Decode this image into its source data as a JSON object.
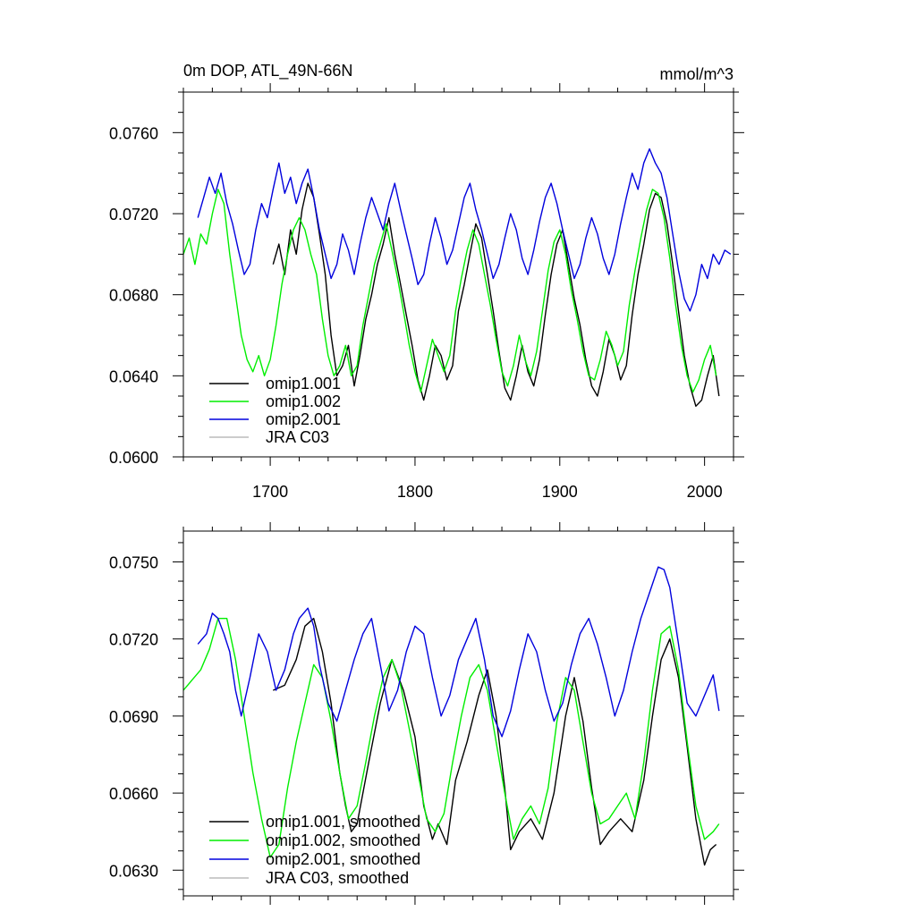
{
  "colors": {
    "omip1_001": "#000000",
    "omip1_002": "#00ee00",
    "omip2_001": "#0000dd",
    "jra": "#bbbbbb",
    "axis": "#000000"
  },
  "chart_data": [
    {
      "type": "line",
      "title": "0m DOP, ATL_49N-66N",
      "units": "mmol/m^3",
      "xlim": [
        1640,
        2020
      ],
      "ylim": [
        0.06,
        0.078
      ],
      "x_ticks": [
        1700,
        1800,
        1900,
        2000
      ],
      "x_tick_labels": [
        "1700",
        "1800",
        "1900",
        "2000"
      ],
      "y_ticks": [
        0.06,
        0.064,
        0.068,
        0.072,
        0.076
      ],
      "y_tick_labels": [
        "0.0600",
        "0.0640",
        "0.0680",
        "0.0720",
        "0.0760"
      ],
      "legend": "bottom-left",
      "series": [
        {
          "name": "omip1.001",
          "color": "#000000",
          "x": [
            1702,
            1706,
            1710,
            1714,
            1718,
            1722,
            1726,
            1730,
            1734,
            1738,
            1742,
            1746,
            1750,
            1754,
            1758,
            1762,
            1766,
            1770,
            1774,
            1778,
            1782,
            1786,
            1790,
            1794,
            1798,
            1802,
            1806,
            1810,
            1814,
            1818,
            1822,
            1826,
            1830,
            1834,
            1838,
            1842,
            1846,
            1850,
            1854,
            1858,
            1862,
            1866,
            1870,
            1874,
            1878,
            1882,
            1886,
            1890,
            1894,
            1898,
            1902,
            1906,
            1910,
            1914,
            1918,
            1922,
            1926,
            1930,
            1934,
            1938,
            1942,
            1946,
            1950,
            1954,
            1958,
            1962,
            1966,
            1970,
            1974,
            1978,
            1982,
            1986,
            1990,
            1994,
            1998,
            2002,
            2006,
            2010
          ],
          "values": [
            0.0695,
            0.0705,
            0.069,
            0.0712,
            0.07,
            0.0722,
            0.0735,
            0.0728,
            0.071,
            0.069,
            0.066,
            0.064,
            0.0645,
            0.0655,
            0.0635,
            0.065,
            0.0668,
            0.068,
            0.0695,
            0.0705,
            0.0718,
            0.07,
            0.0685,
            0.067,
            0.0655,
            0.0638,
            0.0628,
            0.064,
            0.0655,
            0.065,
            0.0638,
            0.0645,
            0.0672,
            0.0685,
            0.07,
            0.0715,
            0.0708,
            0.069,
            0.0672,
            0.0652,
            0.0634,
            0.0628,
            0.064,
            0.0655,
            0.0642,
            0.0635,
            0.0648,
            0.067,
            0.069,
            0.0705,
            0.0712,
            0.0695,
            0.0678,
            0.0665,
            0.0648,
            0.0635,
            0.063,
            0.0642,
            0.0658,
            0.065,
            0.0638,
            0.0645,
            0.067,
            0.069,
            0.0705,
            0.0722,
            0.073,
            0.0728,
            0.0715,
            0.0695,
            0.0672,
            0.065,
            0.0635,
            0.0625,
            0.0628,
            0.064,
            0.065,
            0.063
          ]
        },
        {
          "name": "omip1.002",
          "color": "#00ee00",
          "x": [
            1640,
            1644,
            1648,
            1652,
            1656,
            1660,
            1664,
            1668,
            1672,
            1676,
            1680,
            1684,
            1688,
            1692,
            1696,
            1700,
            1704,
            1708,
            1712,
            1716,
            1720,
            1724,
            1728,
            1732,
            1736,
            1740,
            1744,
            1748,
            1752,
            1756,
            1760,
            1764,
            1768,
            1772,
            1776,
            1780,
            1784,
            1788,
            1792,
            1796,
            1800,
            1804,
            1808,
            1812,
            1816,
            1820,
            1824,
            1828,
            1832,
            1836,
            1840,
            1844,
            1848,
            1852,
            1856,
            1860,
            1864,
            1868,
            1872,
            1876,
            1880,
            1884,
            1888,
            1892,
            1896,
            1900,
            1904,
            1908,
            1912,
            1916,
            1920,
            1924,
            1928,
            1932,
            1936,
            1940,
            1944,
            1948,
            1952,
            1956,
            1960,
            1964,
            1968,
            1972,
            1976,
            1980,
            1984,
            1988,
            1992,
            1996,
            2000,
            2004,
            2008
          ],
          "values": [
            0.07,
            0.0708,
            0.0695,
            0.071,
            0.0705,
            0.072,
            0.0732,
            0.0725,
            0.07,
            0.068,
            0.066,
            0.0648,
            0.0642,
            0.065,
            0.064,
            0.0648,
            0.0665,
            0.0685,
            0.07,
            0.0712,
            0.0718,
            0.0712,
            0.07,
            0.069,
            0.0668,
            0.065,
            0.064,
            0.0645,
            0.0655,
            0.064,
            0.0645,
            0.0665,
            0.068,
            0.0695,
            0.0705,
            0.0715,
            0.0702,
            0.0688,
            0.0672,
            0.0655,
            0.0642,
            0.0632,
            0.0645,
            0.0658,
            0.065,
            0.0642,
            0.065,
            0.0672,
            0.0688,
            0.0702,
            0.0712,
            0.0705,
            0.069,
            0.0675,
            0.0658,
            0.0642,
            0.0635,
            0.0645,
            0.066,
            0.0648,
            0.064,
            0.0652,
            0.0672,
            0.0692,
            0.0706,
            0.0712,
            0.07,
            0.0682,
            0.0668,
            0.0652,
            0.064,
            0.0638,
            0.0648,
            0.0662,
            0.0655,
            0.0645,
            0.0652,
            0.0675,
            0.0692,
            0.0708,
            0.0722,
            0.0732,
            0.073,
            0.0718,
            0.0698,
            0.0675,
            0.0655,
            0.064,
            0.0632,
            0.0638,
            0.0648,
            0.0655,
            0.064
          ]
        },
        {
          "name": "omip2.001",
          "color": "#0000dd",
          "x": [
            1650,
            1654,
            1658,
            1662,
            1666,
            1670,
            1674,
            1678,
            1682,
            1686,
            1690,
            1694,
            1698,
            1702,
            1706,
            1710,
            1714,
            1718,
            1722,
            1726,
            1730,
            1734,
            1738,
            1742,
            1746,
            1750,
            1754,
            1758,
            1762,
            1766,
            1770,
            1774,
            1778,
            1782,
            1786,
            1790,
            1794,
            1798,
            1802,
            1806,
            1810,
            1814,
            1818,
            1822,
            1826,
            1830,
            1834,
            1838,
            1842,
            1846,
            1850,
            1854,
            1858,
            1862,
            1866,
            1870,
            1874,
            1878,
            1882,
            1886,
            1890,
            1894,
            1898,
            1902,
            1906,
            1910,
            1914,
            1918,
            1922,
            1926,
            1930,
            1934,
            1938,
            1942,
            1946,
            1950,
            1954,
            1958,
            1962,
            1966,
            1970,
            1974,
            1978,
            1982,
            1986,
            1990,
            1994,
            1998,
            2002,
            2006,
            2010,
            2014,
            2018
          ],
          "values": [
            0.0718,
            0.0728,
            0.0738,
            0.073,
            0.074,
            0.0725,
            0.0715,
            0.0702,
            0.069,
            0.0695,
            0.0712,
            0.0725,
            0.0718,
            0.0732,
            0.0745,
            0.073,
            0.0738,
            0.0725,
            0.0735,
            0.0742,
            0.0728,
            0.0712,
            0.07,
            0.0688,
            0.0695,
            0.071,
            0.0702,
            0.069,
            0.0705,
            0.0718,
            0.0728,
            0.072,
            0.0712,
            0.0725,
            0.0735,
            0.0722,
            0.071,
            0.0698,
            0.0685,
            0.069,
            0.0705,
            0.0718,
            0.0708,
            0.0695,
            0.0702,
            0.0715,
            0.0728,
            0.0735,
            0.0722,
            0.0712,
            0.07,
            0.0688,
            0.0695,
            0.0708,
            0.072,
            0.0712,
            0.0698,
            0.069,
            0.0702,
            0.0716,
            0.0728,
            0.0735,
            0.0725,
            0.0712,
            0.07,
            0.0688,
            0.0695,
            0.0708,
            0.0718,
            0.071,
            0.0698,
            0.069,
            0.07,
            0.0715,
            0.0728,
            0.074,
            0.0732,
            0.0745,
            0.0752,
            0.0745,
            0.074,
            0.0728,
            0.071,
            0.0692,
            0.0678,
            0.0672,
            0.068,
            0.0695,
            0.0688,
            0.07,
            0.0695,
            0.0702,
            0.07
          ]
        },
        {
          "name": "JRA C03",
          "color": "#bbbbbb",
          "x": [],
          "values": []
        }
      ]
    },
    {
      "type": "line",
      "title": "",
      "units": "",
      "xlim": [
        1640,
        2020
      ],
      "ylim": [
        0.062,
        0.0762
      ],
      "x_ticks": [
        1700,
        1800,
        1900,
        2000
      ],
      "x_tick_labels": [],
      "y_ticks": [
        0.063,
        0.066,
        0.069,
        0.072,
        0.075
      ],
      "y_tick_labels": [
        "0.0630",
        "0.0660",
        "0.0690",
        "0.0720",
        "0.0750"
      ],
      "legend": "bottom-left",
      "series": [
        {
          "name": "omip1.001, smoothed",
          "color": "#000000",
          "x": [
            1702,
            1710,
            1718,
            1724,
            1730,
            1736,
            1742,
            1748,
            1752,
            1756,
            1760,
            1768,
            1776,
            1784,
            1792,
            1800,
            1806,
            1812,
            1816,
            1822,
            1828,
            1836,
            1844,
            1850,
            1856,
            1862,
            1866,
            1872,
            1880,
            1888,
            1896,
            1904,
            1910,
            1916,
            1922,
            1928,
            1934,
            1942,
            1950,
            1958,
            1964,
            1970,
            1976,
            1982,
            1988,
            1994,
            2000,
            2004,
            2008
          ],
          "values": [
            0.07,
            0.0702,
            0.0712,
            0.0725,
            0.0728,
            0.0715,
            0.0695,
            0.0668,
            0.0655,
            0.0645,
            0.0648,
            0.0672,
            0.0695,
            0.0712,
            0.07,
            0.0682,
            0.0655,
            0.0642,
            0.0648,
            0.064,
            0.0665,
            0.068,
            0.0698,
            0.0708,
            0.069,
            0.0662,
            0.0638,
            0.0645,
            0.065,
            0.0642,
            0.066,
            0.069,
            0.0705,
            0.0688,
            0.0662,
            0.064,
            0.0645,
            0.065,
            0.0645,
            0.0665,
            0.069,
            0.0712,
            0.072,
            0.0705,
            0.0678,
            0.065,
            0.0632,
            0.0638,
            0.064
          ]
        },
        {
          "name": "omip1.002, smoothed",
          "color": "#00ee00",
          "x": [
            1640,
            1646,
            1652,
            1658,
            1664,
            1670,
            1676,
            1682,
            1688,
            1694,
            1700,
            1706,
            1712,
            1718,
            1724,
            1730,
            1736,
            1742,
            1748,
            1754,
            1760,
            1766,
            1772,
            1778,
            1784,
            1790,
            1796,
            1802,
            1808,
            1814,
            1820,
            1826,
            1832,
            1838,
            1844,
            1850,
            1856,
            1862,
            1868,
            1874,
            1880,
            1886,
            1892,
            1898,
            1904,
            1910,
            1916,
            1922,
            1928,
            1934,
            1940,
            1946,
            1952,
            1958,
            1964,
            1970,
            1976,
            1982,
            1988,
            1994,
            2000,
            2006,
            2010
          ],
          "values": [
            0.07,
            0.0704,
            0.0708,
            0.0716,
            0.0728,
            0.0728,
            0.0712,
            0.069,
            0.0668,
            0.065,
            0.0635,
            0.064,
            0.0662,
            0.068,
            0.0695,
            0.071,
            0.0705,
            0.0688,
            0.0668,
            0.065,
            0.0655,
            0.0672,
            0.069,
            0.0705,
            0.0712,
            0.0702,
            0.0685,
            0.0668,
            0.065,
            0.0645,
            0.0652,
            0.0672,
            0.069,
            0.0705,
            0.071,
            0.07,
            0.068,
            0.066,
            0.0642,
            0.065,
            0.0655,
            0.0648,
            0.0662,
            0.0688,
            0.0705,
            0.07,
            0.068,
            0.066,
            0.0648,
            0.065,
            0.0655,
            0.066,
            0.065,
            0.0672,
            0.07,
            0.0722,
            0.0725,
            0.0708,
            0.068,
            0.0655,
            0.0642,
            0.0645,
            0.0648
          ]
        },
        {
          "name": "omip2.001, smoothed",
          "color": "#0000dd",
          "x": [
            1650,
            1656,
            1660,
            1664,
            1668,
            1672,
            1676,
            1680,
            1686,
            1692,
            1698,
            1704,
            1710,
            1716,
            1720,
            1726,
            1730,
            1734,
            1740,
            1746,
            1752,
            1758,
            1764,
            1770,
            1776,
            1782,
            1788,
            1794,
            1800,
            1806,
            1812,
            1818,
            1824,
            1830,
            1836,
            1842,
            1848,
            1854,
            1860,
            1866,
            1872,
            1878,
            1884,
            1890,
            1896,
            1902,
            1908,
            1914,
            1920,
            1926,
            1932,
            1938,
            1944,
            1950,
            1956,
            1962,
            1968,
            1972,
            1976,
            1982,
            1988,
            1994,
            2000,
            2006,
            2010
          ],
          "values": [
            0.0718,
            0.0722,
            0.073,
            0.0728,
            0.0722,
            0.0715,
            0.07,
            0.069,
            0.0705,
            0.0722,
            0.0715,
            0.07,
            0.0708,
            0.0722,
            0.0728,
            0.0732,
            0.0725,
            0.071,
            0.0695,
            0.0688,
            0.07,
            0.0712,
            0.0722,
            0.0728,
            0.071,
            0.0692,
            0.07,
            0.0715,
            0.0725,
            0.0722,
            0.0705,
            0.069,
            0.0698,
            0.0712,
            0.072,
            0.0728,
            0.0712,
            0.069,
            0.0682,
            0.0692,
            0.0708,
            0.0722,
            0.0715,
            0.07,
            0.0688,
            0.0695,
            0.071,
            0.0722,
            0.0728,
            0.0718,
            0.0705,
            0.069,
            0.07,
            0.0715,
            0.0728,
            0.0738,
            0.0748,
            0.0747,
            0.074,
            0.0718,
            0.0695,
            0.069,
            0.0698,
            0.0706,
            0.0692
          ]
        },
        {
          "name": "JRA C03, smoothed",
          "color": "#bbbbbb",
          "x": [],
          "values": []
        }
      ]
    }
  ]
}
